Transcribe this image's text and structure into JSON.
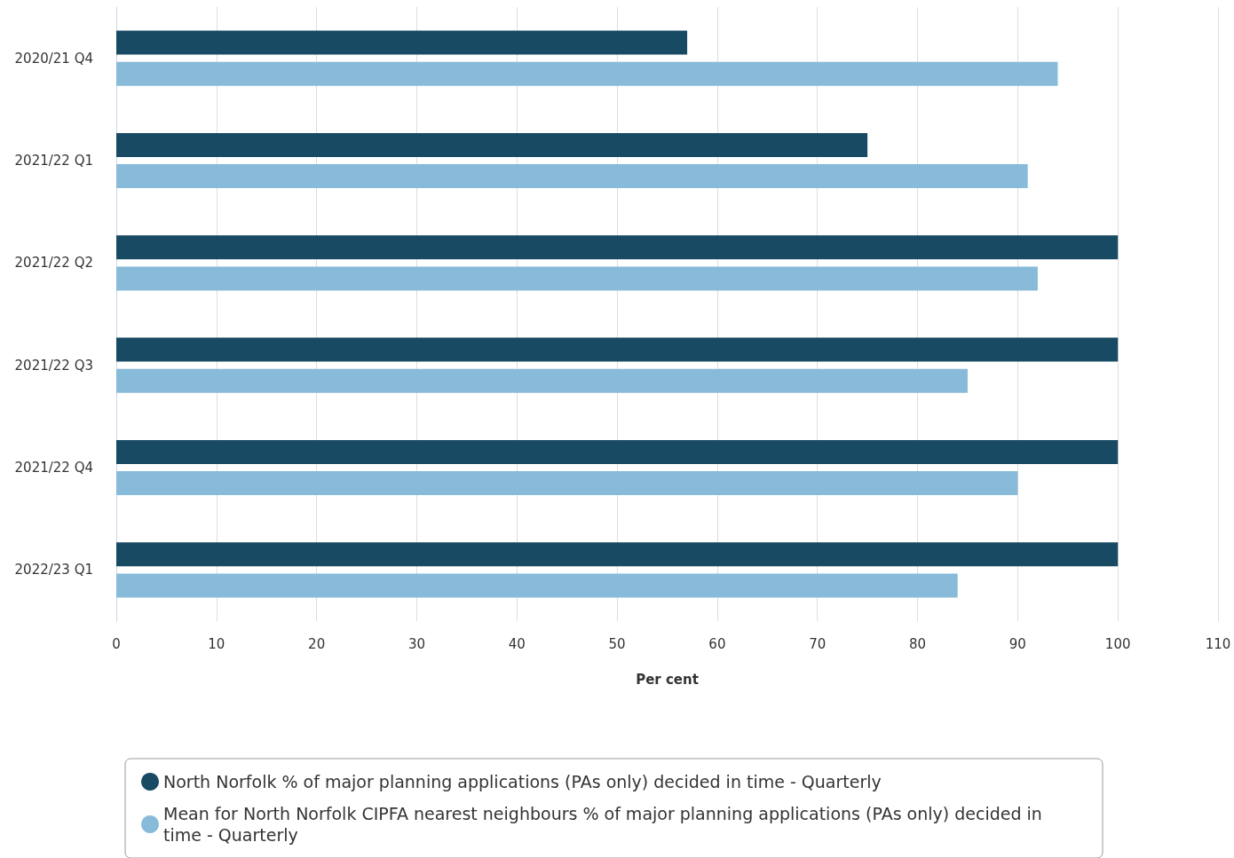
{
  "chart_data": {
    "type": "bar",
    "orientation": "horizontal",
    "xlabel": "Per cent",
    "categories": [
      "2020/21 Q4",
      "2021/22 Q1",
      "2021/22 Q2",
      "2021/22 Q3",
      "2021/22 Q4",
      "2022/23 Q1"
    ],
    "series": [
      {
        "name": "North Norfolk % of major planning applications (PAs only) decided in time - Quarterly",
        "color": "#194a63",
        "values": [
          57,
          75,
          100,
          100,
          100,
          100
        ]
      },
      {
        "name": "Mean for North Norfolk CIPFA nearest neighbours % of major planning applications (PAs only) decided in time - Quarterly",
        "color": "#87bbd9",
        "values": [
          94,
          91,
          92,
          85,
          90,
          84
        ]
      }
    ],
    "xlim": [
      0,
      110
    ],
    "xticks": [
      0,
      10,
      20,
      30,
      40,
      50,
      60,
      70,
      80,
      90,
      100,
      110
    ],
    "grid": "x",
    "legend": "bottom"
  }
}
